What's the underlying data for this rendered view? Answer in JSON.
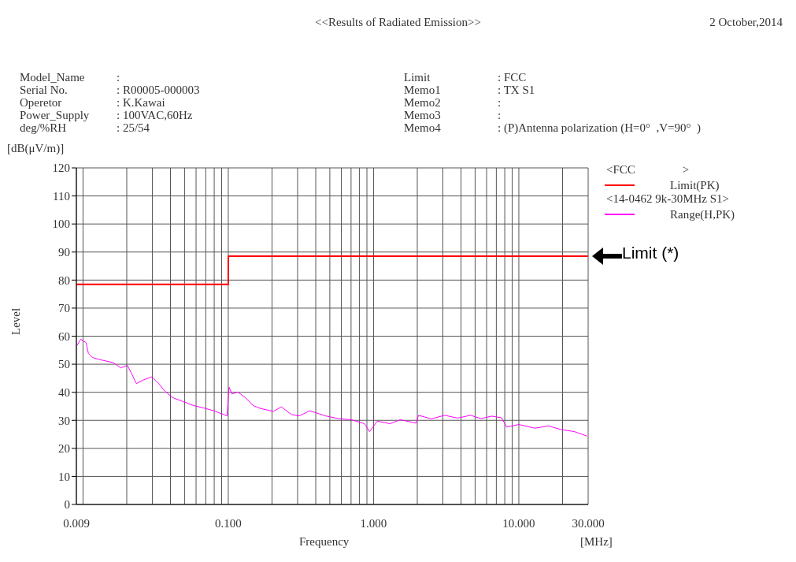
{
  "chart_data": {
    "type": "line",
    "title": "<<Results of Radiated Emission>>",
    "xlabel": "Frequency",
    "ylabel": "Level",
    "annotations": [
      "2 October,2014",
      "Model_Name",
      ":",
      "Serial No.",
      ": R00005-000003",
      "Operetor",
      ": K.Kawai",
      "Power_Supply",
      ": 100VAC,60Hz",
      "deg/%RH",
      ": 25/54",
      "Limit",
      ": FCC",
      "Memo1",
      ": TX S1",
      "Memo2",
      ":",
      "Memo3",
      ":",
      "Memo4",
      ": (P)Antenna polarization (H=0°  ,V=90°  )",
      "[dB(μV/m)]",
      "[MHz]",
      "<FCC                >",
      "<14-0462 9k-30MHz S1>",
      "Limit (*)"
    ],
    "series": [
      {
        "name": "Limit(PK)",
        "color": "#ff0000",
        "x": [
          0.009,
          0.1,
          0.1,
          30
        ],
        "values": [
          78.5,
          78.5,
          88.5,
          88.5
        ]
      },
      {
        "name": "Range(H,PK)",
        "color": "#ff00ff",
        "x": [
          0.00906,
          0.00964,
          0.0105,
          0.0109,
          0.0116,
          0.0134,
          0.0161,
          0.0182,
          0.0202,
          0.0215,
          0.0233,
          0.0263,
          0.0298,
          0.0337,
          0.0366,
          0.0414,
          0.0488,
          0.0574,
          0.0676,
          0.0797,
          0.098,
          0.1012,
          0.106,
          0.116,
          0.131,
          0.148,
          0.167,
          0.205,
          0.232,
          0.273,
          0.309,
          0.364,
          0.466,
          0.571,
          0.704,
          0.866,
          0.94,
          1.06,
          1.3,
          1.53,
          1.96,
          2.04,
          2.5,
          3.08,
          3.8,
          4.65,
          5.5,
          6.5,
          7.6,
          8.26,
          10,
          12.9,
          16,
          19.5,
          24,
          29.4
        ],
        "values": [
          56.6,
          58.9,
          57.7,
          53.8,
          52.4,
          51.5,
          50.6,
          48.7,
          49.6,
          46.9,
          43.1,
          44.5,
          45.5,
          42.7,
          40.4,
          38.1,
          36.7,
          35.3,
          34.4,
          33.4,
          31.6,
          41.8,
          39.4,
          40.1,
          38.1,
          35.3,
          34.2,
          33.2,
          34.8,
          32,
          31.6,
          33.4,
          31.6,
          30.6,
          30.2,
          28.8,
          26,
          29.7,
          28.8,
          30.2,
          29,
          31.8,
          30.5,
          31.8,
          30.8,
          31.8,
          30.6,
          31.5,
          30.9,
          27.6,
          28.5,
          27.2,
          28,
          26.7,
          26,
          24.4
        ]
      }
    ],
    "xlim": [
      0.009,
      30
    ],
    "xticks": [
      {
        "value": 0.009,
        "label": "0.009"
      },
      {
        "value": 0.01,
        "label": null
      },
      {
        "value": 0.02,
        "label": null
      },
      {
        "value": 0.03,
        "label": null
      },
      {
        "value": 0.04,
        "label": null
      },
      {
        "value": 0.05,
        "label": null
      },
      {
        "value": 0.06,
        "label": null
      },
      {
        "value": 0.07,
        "label": null
      },
      {
        "value": 0.08,
        "label": null
      },
      {
        "value": 0.09,
        "label": null
      },
      {
        "value": 0.1,
        "label": "0.100"
      },
      {
        "value": 0.2,
        "label": null
      },
      {
        "value": 0.3,
        "label": null
      },
      {
        "value": 0.4,
        "label": null
      },
      {
        "value": 0.5,
        "label": null
      },
      {
        "value": 0.6,
        "label": null
      },
      {
        "value": 0.7,
        "label": null
      },
      {
        "value": 0.8,
        "label": null
      },
      {
        "value": 0.9,
        "label": null
      },
      {
        "value": 1,
        "label": "1.000"
      },
      {
        "value": 2,
        "label": null
      },
      {
        "value": 3,
        "label": null
      },
      {
        "value": 4,
        "label": null
      },
      {
        "value": 5,
        "label": null
      },
      {
        "value": 6,
        "label": null
      },
      {
        "value": 7,
        "label": null
      },
      {
        "value": 8,
        "label": null
      },
      {
        "value": 9,
        "label": null
      },
      {
        "value": 10,
        "label": "10.000"
      },
      {
        "value": 20,
        "label": null
      },
      {
        "value": 30,
        "label": "30.000"
      }
    ],
    "ylim": [
      0,
      120
    ],
    "yticks": [
      0,
      10,
      20,
      30,
      40,
      50,
      60,
      70,
      80,
      90,
      100,
      110,
      120
    ],
    "log": "x",
    "grid": true,
    "legend": "right",
    "marker": "none",
    "line_style": "solid"
  }
}
